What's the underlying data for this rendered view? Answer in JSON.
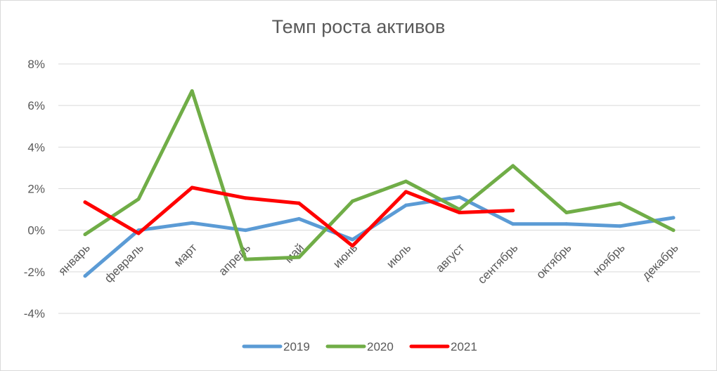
{
  "chart_data": {
    "type": "line",
    "title": "Темп роста активов",
    "xlabel": "",
    "ylabel": "",
    "categories": [
      "январь",
      "февраль",
      "март",
      "апрель",
      "май",
      "июнь",
      "июль",
      "август",
      "сентябрь",
      "октябрь",
      "ноябрь",
      "декабрь"
    ],
    "ylim": [
      -4,
      8
    ],
    "yticks": [
      -4,
      -2,
      0,
      2,
      4,
      6,
      8
    ],
    "ytick_labels": [
      "-4%",
      "-2%",
      "0%",
      "2%",
      "4%",
      "6%",
      "8%"
    ],
    "grid": true,
    "legend_position": "bottom",
    "series": [
      {
        "name": "2019",
        "color": "#5B9BD5",
        "values": [
          -2.2,
          0.0,
          0.35,
          0.0,
          0.55,
          -0.45,
          1.2,
          1.6,
          0.3,
          0.3,
          0.2,
          0.6
        ]
      },
      {
        "name": "2020",
        "color": "#70AD47",
        "values": [
          -0.2,
          1.5,
          6.7,
          -1.4,
          -1.3,
          1.4,
          2.35,
          1.0,
          3.1,
          0.85,
          1.3,
          0.0
        ]
      },
      {
        "name": "2021",
        "color": "#FF0000",
        "values": [
          1.35,
          -0.15,
          2.05,
          1.55,
          1.3,
          -0.75,
          1.85,
          0.85,
          0.95,
          null,
          null,
          null
        ]
      }
    ]
  }
}
